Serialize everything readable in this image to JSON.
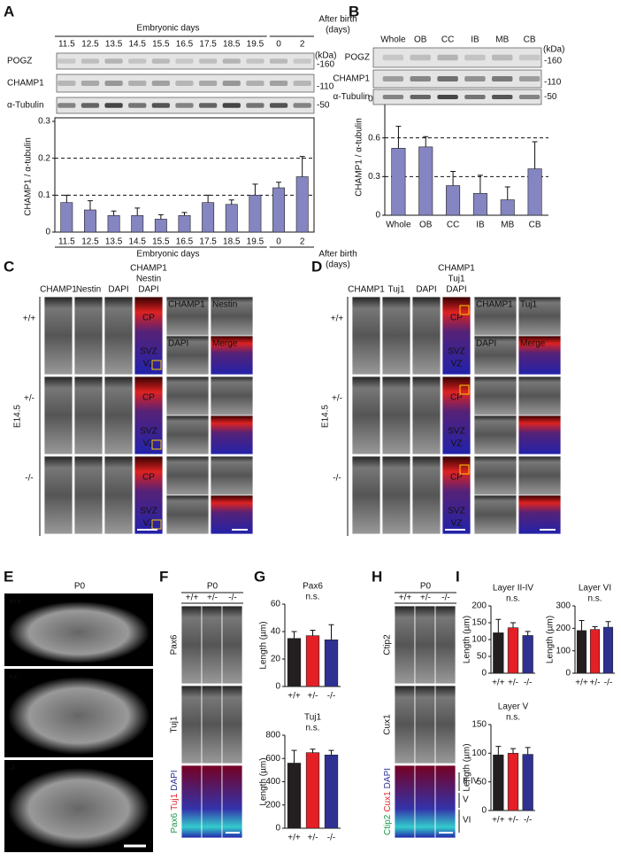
{
  "chart_data": [
    {
      "type": "bar",
      "ylabel": "CHAMP1 / α-tubulin",
      "categories": [
        "11.5",
        "12.5",
        "13.5",
        "14.5",
        "15.5",
        "16.5",
        "17.5",
        "18.5",
        "19.5",
        "0",
        "2"
      ],
      "values": [
        0.08,
        0.06,
        0.045,
        0.045,
        0.035,
        0.045,
        0.08,
        0.075,
        0.1,
        0.12,
        0.15
      ],
      "errors": [
        0.02,
        0.025,
        0.012,
        0.02,
        0.012,
        0.008,
        0.02,
        0.012,
        0.03,
        0.015,
        0.055
      ],
      "color": "#8585c2",
      "ylim": [
        0,
        0.3
      ],
      "yticks": [
        0,
        0.1,
        0.2,
        0.3
      ],
      "grid": true,
      "xlabel": "Embryonic days",
      "xlabel2": [
        "After birth",
        "(days)"
      ]
    },
    {
      "type": "bar",
      "ylabel": "CHAMP1 / α-tubulin",
      "categories": [
        "Whole",
        "OB",
        "CC",
        "IB",
        "MB",
        "CB"
      ],
      "values": [
        0.52,
        0.53,
        0.23,
        0.17,
        0.12,
        0.36
      ],
      "errors": [
        0.17,
        0.08,
        0.11,
        0.14,
        0.1,
        0.21
      ],
      "color": "#8585c2",
      "ylim": [
        0,
        0.9
      ],
      "yticks": [
        0,
        0.3,
        0.6,
        0.9
      ],
      "grid": true
    },
    {
      "type": "bar",
      "title": "Pax6",
      "annotation": "n.s.",
      "ylabel": "Length (µm)",
      "categories": [
        "+/+",
        "+/-",
        "-/-"
      ],
      "values": [
        35,
        37,
        34
      ],
      "errors": [
        5,
        4,
        11
      ],
      "colors": [
        "#231f20",
        "#e41f26",
        "#2e3192"
      ],
      "ylim": [
        0,
        60
      ],
      "yticks": [
        0,
        20,
        40,
        60
      ],
      "grid": false
    },
    {
      "type": "bar",
      "title": "Tuj1",
      "annotation": "n.s.",
      "ylabel": "Length (µm)",
      "categories": [
        "+/+",
        "+/-",
        "-/-"
      ],
      "values": [
        560,
        650,
        630
      ],
      "errors": [
        110,
        30,
        40
      ],
      "colors": [
        "#231f20",
        "#e41f26",
        "#2e3192"
      ],
      "ylim": [
        0,
        800
      ],
      "yticks": [
        0,
        200,
        400,
        600,
        800
      ],
      "grid": false
    },
    {
      "type": "bar",
      "title": "Layer II-IV",
      "annotation": "n.s.",
      "ylabel": "Length (µm)",
      "categories": [
        "+/+",
        "+/-",
        "-/-"
      ],
      "values": [
        120,
        135,
        112
      ],
      "errors": [
        40,
        15,
        12
      ],
      "colors": [
        "#231f20",
        "#e41f26",
        "#2e3192"
      ],
      "ylim": [
        0,
        200
      ],
      "yticks": [
        0,
        50,
        100,
        150,
        200
      ],
      "grid": false
    },
    {
      "type": "bar",
      "title": "Layer VI",
      "annotation": "n.s.",
      "ylabel": "Length (µm)",
      "categories": [
        "+/+",
        "+/-",
        "-/-"
      ],
      "values": [
        190,
        195,
        205
      ],
      "errors": [
        45,
        12,
        25
      ],
      "colors": [
        "#231f20",
        "#e41f26",
        "#2e3192"
      ],
      "ylim": [
        0,
        300
      ],
      "yticks": [
        0,
        100,
        200,
        300
      ],
      "grid": false
    },
    {
      "type": "bar",
      "title": "Layer V",
      "annotation": "n.s.",
      "ylabel": "Length (µm)",
      "categories": [
        "+/+",
        "+/-",
        "-/-"
      ],
      "values": [
        97,
        100,
        98
      ],
      "errors": [
        15,
        8,
        12
      ],
      "colors": [
        "#231f20",
        "#e41f26",
        "#2e3192"
      ],
      "ylim": [
        0,
        150
      ],
      "yticks": [
        0,
        50,
        100,
        150
      ],
      "grid": false
    }
  ],
  "A": {
    "letter": "A",
    "rows": [
      "POGZ",
      "CHAMP1",
      "α-Tubulin"
    ],
    "markers": [
      "-160",
      "-110",
      "-50"
    ],
    "unit": "(kDa)"
  },
  "B": {
    "letter": "B",
    "rows": [
      "POGZ",
      "CHAMP1",
      "α-Tubulin"
    ],
    "markers": [
      "-160",
      "-110",
      "-50"
    ],
    "unit": "(kDa)"
  },
  "C": {
    "letter": "C",
    "title": [
      "CHAMP1",
      "Nestin",
      "DAPI"
    ],
    "columns": [
      "CHAMP1",
      "Nestin",
      "DAPI"
    ],
    "insets": [
      "CHAMP1",
      "Nestin",
      "DAPI",
      "Merge"
    ],
    "genotypes": [
      "+/+",
      "+/-",
      "-/-"
    ],
    "stage": "E14.5",
    "regions": [
      "CP",
      "SVZ",
      "VZ"
    ]
  },
  "D": {
    "letter": "D",
    "title": [
      "CHAMP1",
      "Tuj1",
      "DAPI"
    ],
    "columns": [
      "CHAMP1",
      "Tuj1",
      "DAPI"
    ],
    "insets": [
      "CHAMP1",
      "Tuj1",
      "DAPI",
      "Merge"
    ],
    "genotypes": [
      "+/+",
      "+/-",
      "-/-"
    ],
    "stage": "E14.5",
    "regions": [
      "CP",
      "SVZ",
      "VZ"
    ]
  },
  "E": {
    "letter": "E",
    "stage": "P0",
    "genotypes": [
      "+/+",
      "+/-",
      "-/-"
    ]
  },
  "F": {
    "letter": "F",
    "stage": "P0",
    "genotypes": [
      "+/+",
      "+/-",
      "-/-"
    ],
    "rows": [
      "Pax6",
      "Tuj1"
    ],
    "merge": [
      "Pax6",
      "Tuj1",
      "DAPI"
    ]
  },
  "G": {
    "letter": "G"
  },
  "H": {
    "letter": "H",
    "stage": "P0",
    "genotypes": [
      "+/+",
      "+/-",
      "-/-"
    ],
    "rows": [
      "Ctip2",
      "Cux1"
    ],
    "merge": [
      "Ctip2",
      "Cux1",
      "DAPI"
    ],
    "layers": [
      "II-IV",
      "V",
      "VI"
    ]
  },
  "I": {
    "letter": "I"
  }
}
